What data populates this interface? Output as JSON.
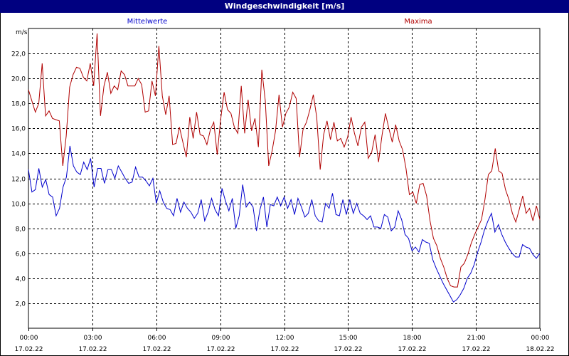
{
  "window": {
    "title": "Windgeschwindigkeit [m/s]"
  },
  "colors": {
    "title_bg": "#000080",
    "mean": "#0000cc",
    "max": "#b00000"
  },
  "chart_data": {
    "type": "line",
    "title": "Windgeschwindigkeit [m/s]",
    "ylabel": "m/s",
    "ylim": [
      0,
      24
    ],
    "yticks": [
      "2,0",
      "4,0",
      "6,0",
      "8,0",
      "10,0",
      "12,0",
      "14,0",
      "16,0",
      "18,0",
      "20,0",
      "22,0"
    ],
    "xlim": [
      0,
      24
    ],
    "xticks": [
      {
        "time": "00:00",
        "date": "17.02.22"
      },
      {
        "time": "03:00",
        "date": "17.02.22"
      },
      {
        "time": "06:00",
        "date": "17.02.22"
      },
      {
        "time": "09:00",
        "date": "17.02.22"
      },
      {
        "time": "12:00",
        "date": "17.02.22"
      },
      {
        "time": "15:00",
        "date": "17.02.22"
      },
      {
        "time": "18:00",
        "date": "17.02.22"
      },
      {
        "time": "21:00",
        "date": "17.02.22"
      },
      {
        "time": "00:00",
        "date": "18.02.22"
      }
    ],
    "grid": true,
    "legend_placement": "top",
    "series": [
      {
        "name": "Mittelwerte",
        "color": "#0000cc",
        "values": [
          12.7,
          10.9,
          11.1,
          12.8,
          11.3,
          11.9,
          10.7,
          10.5,
          9.0,
          9.6,
          11.3,
          12.1,
          14.6,
          13.0,
          12.5,
          12.3,
          13.3,
          12.7,
          13.6,
          11.3,
          12.8,
          12.8,
          11.6,
          12.7,
          12.7,
          12.0,
          13.0,
          12.5,
          12.0,
          11.6,
          11.7,
          12.9,
          12.1,
          12.1,
          11.8,
          11.4,
          12.0,
          10.0,
          11.0,
          10.1,
          9.6,
          9.5,
          9.0,
          10.4,
          9.3,
          10.1,
          9.6,
          9.3,
          8.8,
          9.2,
          10.3,
          8.6,
          9.3,
          10.4,
          9.5,
          9.0,
          11.2,
          10.2,
          9.4,
          10.4,
          8.0,
          9.0,
          11.5,
          9.7,
          10.1,
          9.7,
          7.8,
          9.5,
          10.5,
          8.1,
          9.9,
          9.8,
          10.5,
          9.8,
          10.5,
          9.6,
          10.3,
          9.1,
          10.4,
          9.7,
          8.9,
          9.2,
          10.3,
          9.0,
          8.6,
          8.5,
          10.0,
          9.6,
          10.8,
          9.1,
          9.0,
          10.3,
          9.1,
          10.3,
          9.2,
          10.0,
          9.2,
          9.0,
          8.7,
          9.0,
          8.1,
          8.1,
          8.0,
          9.1,
          8.9,
          7.8,
          8.1,
          9.4,
          8.7,
          7.5,
          7.2,
          6.2,
          6.5,
          6.1,
          7.1,
          6.9,
          6.8,
          5.5,
          4.8,
          4.2,
          3.6,
          3.1,
          2.6,
          2.1,
          2.3,
          2.7,
          3.2,
          4.0,
          4.4,
          5.1,
          6.1,
          6.9,
          7.9,
          8.6,
          9.2,
          7.7,
          8.3,
          7.5,
          6.9,
          6.4,
          6.0,
          5.7,
          5.7,
          6.7,
          6.5,
          6.4,
          5.9,
          5.6,
          6.0
        ]
      },
      {
        "name": "Maxima",
        "color": "#b00000",
        "values": [
          19.1,
          18.2,
          17.3,
          18.0,
          21.2,
          17.0,
          17.4,
          16.8,
          16.7,
          16.6,
          13.0,
          15.4,
          19.3,
          20.3,
          20.9,
          20.8,
          20.1,
          19.8,
          21.2,
          19.4,
          23.6,
          17.0,
          19.4,
          20.5,
          18.8,
          19.4,
          19.1,
          20.6,
          20.3,
          19.4,
          19.4,
          19.4,
          20.0,
          19.5,
          17.3,
          17.4,
          19.8,
          18.6,
          22.6,
          18.6,
          17.1,
          18.6,
          14.7,
          14.8,
          16.1,
          14.9,
          13.7,
          16.9,
          15.2,
          17.3,
          15.5,
          15.4,
          14.7,
          15.9,
          16.5,
          13.9,
          16.7,
          18.9,
          17.5,
          17.2,
          16.1,
          15.6,
          19.4,
          15.6,
          18.3,
          15.8,
          16.8,
          14.5,
          20.7,
          18.2,
          13.0,
          14.2,
          15.8,
          18.7,
          16.1,
          17.2,
          17.7,
          18.9,
          18.4,
          13.7,
          15.9,
          16.5,
          17.5,
          18.7,
          16.9,
          12.7,
          15.5,
          16.6,
          15.1,
          16.5,
          15.0,
          15.2,
          14.5,
          15.3,
          16.9,
          15.6,
          14.6,
          16.1,
          16.5,
          13.6,
          14.1,
          15.5,
          13.3,
          15.4,
          17.2,
          16.0,
          14.9,
          16.3,
          15.0,
          14.3,
          12.8,
          10.7,
          10.9,
          10.0,
          11.5,
          11.6,
          10.6,
          8.6,
          7.2,
          6.6,
          5.6,
          4.9,
          4.0,
          3.4,
          3.3,
          3.3,
          4.9,
          5.2,
          5.9,
          6.8,
          7.5,
          8.1,
          8.7,
          10.3,
          12.3,
          12.6,
          14.4,
          12.6,
          12.4,
          11.1,
          10.3,
          9.2,
          8.5,
          9.5,
          10.6,
          9.2,
          9.6,
          8.6,
          9.8,
          8.7
        ]
      }
    ]
  }
}
